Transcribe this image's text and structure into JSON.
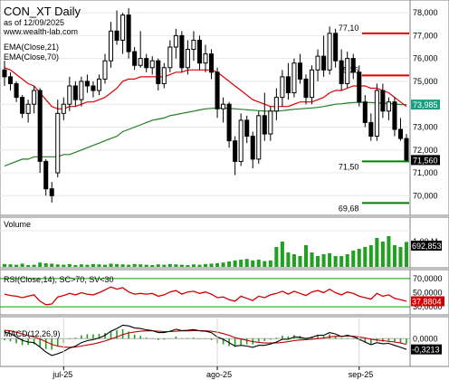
{
  "header": {
    "symbol_title": "CON_XT Daily",
    "as_of": "as of 12/09/2025",
    "source": "www.wealth-lab.com"
  },
  "colors": {
    "up_candle": "#ffffff",
    "down_candle": "#000000",
    "ema21": "#e00000",
    "ema70": "#208020",
    "resistance": "#e00000",
    "support": "#008000",
    "volume_up": "#22a022",
    "volume_down": "#22a022",
    "rsi_line": "#d00000",
    "rsi_band": "#00a000",
    "macd_line": "#000000",
    "signal_line": "#c00000",
    "hist": "#20a020",
    "price_tag": "#000000",
    "ema70_tag": "#1aa080"
  },
  "chart_data": [
    {
      "type": "candlestick",
      "panel": "price",
      "legend": [
        "EMA(Close,21)",
        "EMA(Close,70)"
      ],
      "ylim": [
        69.3,
        78.4
      ],
      "y_ticks": [
        70.0,
        71.0,
        72.0,
        73.0,
        74.0,
        75.0,
        76.0,
        77.0,
        78.0
      ],
      "y_tick_labels": [
        "70,000",
        "71,000",
        "72,000",
        "73,000",
        "74,000",
        "75,000",
        "76,000",
        "77,000",
        "78,000"
      ],
      "last_price_label": "71,560",
      "last_price": 71.56,
      "ema70_label": "73,985",
      "ema70_last": 73.985,
      "x_labels": [
        {
          "text": "jul-25",
          "index": 10
        },
        {
          "text": "ago-25",
          "index": 36
        },
        {
          "text": "sep-25",
          "index": 60
        }
      ],
      "candles": [
        {
          "o": 75.5,
          "h": 75.9,
          "l": 74.8,
          "c": 75.2
        },
        {
          "o": 75.2,
          "h": 75.4,
          "l": 74.6,
          "c": 74.9
        },
        {
          "o": 74.9,
          "h": 75.0,
          "l": 74.1,
          "c": 74.3
        },
        {
          "o": 74.3,
          "h": 74.4,
          "l": 73.4,
          "c": 73.6
        },
        {
          "o": 73.6,
          "h": 74.2,
          "l": 73.2,
          "c": 74.0
        },
        {
          "o": 74.0,
          "h": 74.8,
          "l": 73.6,
          "c": 74.6
        },
        {
          "o": 74.6,
          "h": 74.7,
          "l": 71.0,
          "c": 71.5
        },
        {
          "o": 71.5,
          "h": 71.6,
          "l": 70.0,
          "c": 70.3
        },
        {
          "o": 70.3,
          "h": 70.6,
          "l": 69.7,
          "c": 70.0
        },
        {
          "o": 71.0,
          "h": 74.2,
          "l": 70.8,
          "c": 73.6
        },
        {
          "o": 73.6,
          "h": 74.3,
          "l": 73.3,
          "c": 74.0
        },
        {
          "o": 74.0,
          "h": 75.2,
          "l": 73.7,
          "c": 74.8
        },
        {
          "o": 74.8,
          "h": 75.0,
          "l": 73.9,
          "c": 74.2
        },
        {
          "o": 74.2,
          "h": 75.2,
          "l": 73.9,
          "c": 75.0
        },
        {
          "o": 75.0,
          "h": 75.3,
          "l": 74.5,
          "c": 74.8
        },
        {
          "o": 74.8,
          "h": 75.0,
          "l": 74.3,
          "c": 74.6
        },
        {
          "o": 74.6,
          "h": 75.3,
          "l": 74.4,
          "c": 75.1
        },
        {
          "o": 75.1,
          "h": 76.2,
          "l": 74.9,
          "c": 75.9
        },
        {
          "o": 75.9,
          "h": 77.6,
          "l": 75.6,
          "c": 77.2
        },
        {
          "o": 77.2,
          "h": 78.1,
          "l": 76.6,
          "c": 76.8
        },
        {
          "o": 76.8,
          "h": 78.0,
          "l": 76.2,
          "c": 77.9
        },
        {
          "o": 77.9,
          "h": 78.2,
          "l": 76.0,
          "c": 76.3
        },
        {
          "o": 76.3,
          "h": 76.5,
          "l": 75.5,
          "c": 75.7
        },
        {
          "o": 75.7,
          "h": 77.2,
          "l": 75.6,
          "c": 76.0
        },
        {
          "o": 76.0,
          "h": 76.2,
          "l": 75.4,
          "c": 75.6
        },
        {
          "o": 75.6,
          "h": 76.1,
          "l": 75.3,
          "c": 75.9
        },
        {
          "o": 75.9,
          "h": 76.0,
          "l": 74.6,
          "c": 74.9
        },
        {
          "o": 74.9,
          "h": 75.8,
          "l": 74.7,
          "c": 75.6
        },
        {
          "o": 75.6,
          "h": 76.8,
          "l": 75.4,
          "c": 76.5
        },
        {
          "o": 76.5,
          "h": 77.3,
          "l": 76.0,
          "c": 77.0
        },
        {
          "o": 77.0,
          "h": 77.2,
          "l": 75.4,
          "c": 75.6
        },
        {
          "o": 75.6,
          "h": 76.8,
          "l": 75.3,
          "c": 76.4
        },
        {
          "o": 76.4,
          "h": 77.2,
          "l": 75.9,
          "c": 76.8
        },
        {
          "o": 76.8,
          "h": 77.0,
          "l": 75.5,
          "c": 75.8
        },
        {
          "o": 75.8,
          "h": 76.6,
          "l": 75.4,
          "c": 76.2
        },
        {
          "o": 76.2,
          "h": 76.4,
          "l": 75.1,
          "c": 75.4
        },
        {
          "o": 75.4,
          "h": 75.6,
          "l": 73.4,
          "c": 73.8
        },
        {
          "o": 73.8,
          "h": 74.3,
          "l": 73.2,
          "c": 74.0
        },
        {
          "o": 74.0,
          "h": 74.1,
          "l": 72.1,
          "c": 72.4
        },
        {
          "o": 72.4,
          "h": 72.6,
          "l": 70.9,
          "c": 71.5
        },
        {
          "o": 71.5,
          "h": 73.6,
          "l": 71.3,
          "c": 73.3
        },
        {
          "o": 73.3,
          "h": 73.5,
          "l": 72.3,
          "c": 72.6
        },
        {
          "o": 72.6,
          "h": 72.8,
          "l": 71.2,
          "c": 71.6
        },
        {
          "o": 71.6,
          "h": 73.7,
          "l": 71.4,
          "c": 73.5
        },
        {
          "o": 73.5,
          "h": 74.5,
          "l": 72.4,
          "c": 72.7
        },
        {
          "o": 72.7,
          "h": 73.9,
          "l": 72.4,
          "c": 73.7
        },
        {
          "o": 73.7,
          "h": 74.7,
          "l": 73.3,
          "c": 74.3
        },
        {
          "o": 74.3,
          "h": 75.5,
          "l": 73.9,
          "c": 75.2
        },
        {
          "o": 75.2,
          "h": 75.8,
          "l": 74.2,
          "c": 74.5
        },
        {
          "o": 74.5,
          "h": 76.0,
          "l": 74.3,
          "c": 75.8
        },
        {
          "o": 75.8,
          "h": 76.2,
          "l": 74.9,
          "c": 75.1
        },
        {
          "o": 75.1,
          "h": 75.3,
          "l": 74.0,
          "c": 74.3
        },
        {
          "o": 74.3,
          "h": 75.7,
          "l": 74.0,
          "c": 75.5
        },
        {
          "o": 75.5,
          "h": 76.4,
          "l": 75.0,
          "c": 76.1
        },
        {
          "o": 76.1,
          "h": 77.0,
          "l": 75.2,
          "c": 75.5
        },
        {
          "o": 75.5,
          "h": 77.4,
          "l": 75.3,
          "c": 77.1
        },
        {
          "o": 77.1,
          "h": 77.3,
          "l": 75.6,
          "c": 75.9
        },
        {
          "o": 75.9,
          "h": 76.4,
          "l": 74.6,
          "c": 74.9
        },
        {
          "o": 74.9,
          "h": 76.3,
          "l": 74.7,
          "c": 76.0
        },
        {
          "o": 76.0,
          "h": 76.2,
          "l": 75.1,
          "c": 75.4
        },
        {
          "o": 75.4,
          "h": 75.7,
          "l": 73.9,
          "c": 74.1
        },
        {
          "o": 74.1,
          "h": 74.4,
          "l": 73.0,
          "c": 73.2
        },
        {
          "o": 73.2,
          "h": 73.6,
          "l": 72.4,
          "c": 72.6
        },
        {
          "o": 72.6,
          "h": 74.9,
          "l": 72.4,
          "c": 74.6
        },
        {
          "o": 74.6,
          "h": 74.9,
          "l": 73.4,
          "c": 73.7
        },
        {
          "o": 73.7,
          "h": 74.3,
          "l": 73.3,
          "c": 74.1
        },
        {
          "o": 74.1,
          "h": 74.3,
          "l": 72.6,
          "c": 72.9
        },
        {
          "o": 72.9,
          "h": 73.4,
          "l": 72.4,
          "c": 72.5
        },
        {
          "o": 72.5,
          "h": 72.7,
          "l": 71.5,
          "c": 71.56
        }
      ],
      "ema21": [
        75.6,
        75.5,
        75.3,
        75.1,
        74.9,
        74.8,
        74.5,
        74.2,
        73.9,
        73.8,
        73.8,
        73.9,
        73.9,
        74.0,
        74.1,
        74.1,
        74.2,
        74.3,
        74.5,
        74.7,
        75.0,
        75.1,
        75.1,
        75.2,
        75.2,
        75.2,
        75.2,
        75.2,
        75.3,
        75.4,
        75.4,
        75.5,
        75.5,
        75.5,
        75.5,
        75.5,
        75.4,
        75.2,
        75.0,
        74.8,
        74.6,
        74.4,
        74.2,
        74.1,
        74.0,
        73.9,
        73.9,
        73.9,
        73.9,
        74.0,
        74.1,
        74.1,
        74.1,
        74.2,
        74.3,
        74.5,
        74.6,
        74.6,
        74.7,
        74.8,
        74.8,
        74.8,
        74.7,
        74.7,
        74.6,
        74.5,
        74.3,
        74.1,
        73.9
      ],
      "ema70": [
        71.3,
        71.4,
        71.5,
        71.6,
        71.6,
        71.7,
        71.7,
        71.7,
        71.7,
        71.7,
        71.8,
        71.8,
        71.9,
        72.0,
        72.1,
        72.2,
        72.3,
        72.4,
        72.5,
        72.6,
        72.8,
        72.9,
        73.0,
        73.1,
        73.2,
        73.3,
        73.35,
        73.4,
        73.5,
        73.55,
        73.6,
        73.65,
        73.7,
        73.75,
        73.8,
        73.82,
        73.83,
        73.83,
        73.82,
        73.8,
        73.78,
        73.76,
        73.74,
        73.72,
        73.7,
        73.7,
        73.7,
        73.72,
        73.75,
        73.78,
        73.8,
        73.82,
        73.84,
        73.86,
        73.9,
        73.95,
        74.0,
        74.02,
        74.05,
        74.07,
        74.08,
        74.08,
        74.07,
        74.06,
        74.05,
        74.03,
        74.01,
        73.99,
        73.985
      ],
      "resistance_lines": [
        {
          "value": 77.1,
          "label": "77,10",
          "from": 62,
          "to": 68
        },
        {
          "value": 75.26,
          "label": "75,26",
          "from": 62,
          "to": 68
        }
      ],
      "support_lines": [
        {
          "value": 71.5,
          "label": "71,50",
          "from": 62,
          "to": 68
        },
        {
          "value": 69.68,
          "label": "69,68",
          "from": 62,
          "to": 68
        }
      ]
    },
    {
      "type": "bar",
      "panel": "volume",
      "title": "Volume",
      "ylim": [
        0,
        1.3
      ],
      "y_tick_labels": [
        "1,00 M"
      ],
      "y_ticks": [
        1.0
      ],
      "last_label": "692,853",
      "values": [
        0.08,
        0.07,
        0.06,
        0.09,
        0.05,
        0.06,
        0.12,
        0.1,
        0.09,
        0.07,
        0.06,
        0.08,
        0.05,
        0.07,
        0.06,
        0.08,
        0.07,
        0.06,
        0.09,
        0.08,
        0.07,
        0.06,
        0.08,
        0.07,
        0.06,
        0.05,
        0.07,
        0.06,
        0.08,
        0.07,
        0.06,
        0.05,
        0.07,
        0.06,
        0.08,
        0.09,
        0.1,
        0.12,
        0.15,
        0.18,
        0.2,
        0.22,
        0.18,
        0.2,
        0.16,
        0.18,
        0.55,
        0.7,
        0.4,
        0.35,
        0.3,
        0.6,
        0.4,
        0.3,
        0.35,
        0.38,
        0.3,
        0.3,
        0.35,
        0.45,
        0.5,
        0.55,
        0.6,
        0.8,
        0.7,
        0.85,
        0.6,
        0.55,
        0.69
      ]
    },
    {
      "type": "line",
      "panel": "rsi",
      "title": "RSI(Close,14), SC>70, SV<30",
      "ylim": [
        20,
        80
      ],
      "y_ticks": [
        30,
        50,
        70
      ],
      "y_tick_labels": [
        "30,0000",
        "50,0000",
        "70,0000"
      ],
      "last_label": "37,8804",
      "values": [
        48,
        46,
        45,
        43,
        45,
        47,
        38,
        33,
        34,
        44,
        46,
        49,
        47,
        50,
        48,
        47,
        50,
        54,
        58,
        55,
        57,
        51,
        48,
        49,
        48,
        49,
        45,
        47,
        51,
        53,
        48,
        51,
        52,
        49,
        51,
        48,
        43,
        44,
        40,
        38,
        45,
        42,
        39,
        45,
        43,
        47,
        49,
        52,
        48,
        52,
        49,
        46,
        51,
        53,
        50,
        55,
        50,
        47,
        51,
        49,
        45,
        43,
        41,
        49,
        45,
        47,
        42,
        40,
        37.9
      ]
    },
    {
      "type": "line",
      "panel": "macd",
      "title": "MACD(12,26,9)",
      "ylim": [
        -0.8,
        0.6
      ],
      "y_ticks": [
        0
      ],
      "y_tick_labels": [
        "0,0000"
      ],
      "last_label": "-0,3213",
      "macd": [
        0.2,
        0.15,
        0.05,
        -0.05,
        -0.1,
        -0.12,
        -0.25,
        -0.4,
        -0.5,
        -0.45,
        -0.38,
        -0.28,
        -0.22,
        -0.12,
        -0.06,
        -0.03,
        0.02,
        0.1,
        0.22,
        0.3,
        0.4,
        0.38,
        0.32,
        0.3,
        0.26,
        0.24,
        0.18,
        0.18,
        0.22,
        0.28,
        0.24,
        0.25,
        0.27,
        0.23,
        0.22,
        0.18,
        0.05,
        -0.02,
        -0.12,
        -0.22,
        -0.2,
        -0.22,
        -0.26,
        -0.2,
        -0.2,
        -0.16,
        -0.1,
        -0.02,
        -0.02,
        0.05,
        0.04,
        0.0,
        0.04,
        0.1,
        0.1,
        0.18,
        0.14,
        0.06,
        0.1,
        0.06,
        -0.02,
        -0.1,
        -0.18,
        -0.12,
        -0.15,
        -0.14,
        -0.2,
        -0.26,
        -0.32
      ],
      "signal": [
        0.25,
        0.23,
        0.19,
        0.14,
        0.09,
        0.05,
        -0.01,
        -0.09,
        -0.17,
        -0.22,
        -0.25,
        -0.26,
        -0.25,
        -0.22,
        -0.19,
        -0.16,
        -0.12,
        -0.07,
        -0.01,
        0.05,
        0.12,
        0.17,
        0.2,
        0.22,
        0.23,
        0.23,
        0.22,
        0.21,
        0.21,
        0.22,
        0.23,
        0.23,
        0.24,
        0.24,
        0.23,
        0.22,
        0.19,
        0.15,
        0.1,
        0.03,
        -0.01,
        -0.05,
        -0.09,
        -0.11,
        -0.13,
        -0.13,
        -0.13,
        -0.11,
        -0.09,
        -0.06,
        -0.04,
        -0.03,
        -0.02,
        0.0,
        0.02,
        0.05,
        0.07,
        0.07,
        0.08,
        0.07,
        0.05,
        0.02,
        -0.02,
        -0.04,
        -0.06,
        -0.08,
        -0.1,
        -0.13,
        -0.17
      ],
      "x_labels": [
        {
          "text": "jul-25",
          "index": 10
        },
        {
          "text": "ago-25",
          "index": 36
        },
        {
          "text": "sep-25",
          "index": 60
        }
      ]
    }
  ]
}
